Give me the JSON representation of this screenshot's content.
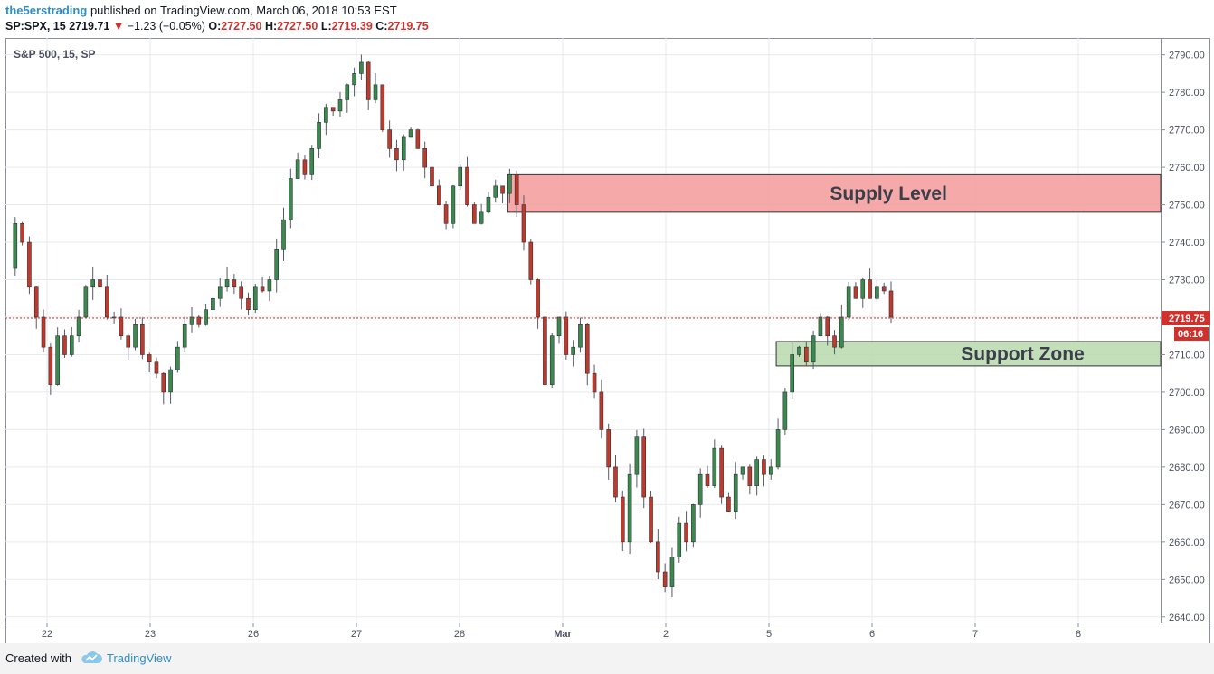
{
  "header": {
    "author": "the5erstrading",
    "published_text": "published on TradingView.com, March 06, 2018 10:53 EST",
    "symbol": "SP:SPX, 15",
    "last": "2719.71",
    "change": "−1.23 (−0.05%)",
    "o_label": "O:",
    "o_value": "2727.50",
    "h_label": "H:",
    "h_value": "2727.50",
    "l_label": "L:",
    "l_value": "2719.39",
    "c_label": "C:",
    "c_value": "2719.75",
    "down_color": "#d0312d",
    "author_color": "#2e8ec8"
  },
  "footer": {
    "created_with": "Created with",
    "brand": "TradingView",
    "logo_icon": "tradingview-cloud-icon"
  },
  "chart_data": {
    "type": "candlestick",
    "title": "S&P 500, 15, SP",
    "xlabel": "",
    "ylabel": "",
    "ylim": [
      2638.5,
      2794.5
    ],
    "y_ticks": [
      2640,
      2650,
      2660,
      2670,
      2680,
      2690,
      2700,
      2710,
      2720,
      2730,
      2740,
      2750,
      2760,
      2770,
      2780,
      2790
    ],
    "y_tick_labels": [
      "2640.00",
      "2650.00",
      "2660.00",
      "2670.00",
      "2680.00",
      "2690.00",
      "2700.00",
      "2710.00",
      "2720.00",
      "2730.00",
      "2740.00",
      "2750.00",
      "2760.00",
      "2770.00",
      "2780.00",
      "2790.00"
    ],
    "x_ticks": [
      "22",
      "23",
      "26",
      "27",
      "28",
      "Mar",
      "2",
      "5",
      "6",
      "7",
      "8"
    ],
    "grid": true,
    "up_color": "#3b8a4d",
    "down_color": "#c0392b",
    "last_price_label": "2719.75",
    "last_price": 2719.75,
    "countdown_label": "06:16",
    "zones": [
      {
        "label": "Supply Level",
        "from": 2748,
        "to": 2758,
        "fill": "#f59a9a",
        "border": "#333333"
      },
      {
        "label": "Support Zone",
        "from": 2707,
        "to": 2713.5,
        "fill": "#b8d9ad",
        "border": "#333333"
      }
    ],
    "anchors": [
      2733,
      2745,
      2740,
      2728,
      2720,
      2712,
      2702,
      2715,
      2710,
      2715,
      2720,
      2728,
      2730,
      2728,
      2720,
      2720,
      2715,
      2712,
      2718,
      2710,
      2708,
      2705,
      2700,
      2706,
      2712,
      2718,
      2720,
      2718,
      2722,
      2725,
      2728,
      2730,
      2728,
      2725,
      2722,
      2728,
      2727,
      2730,
      2738,
      2746,
      2757,
      2762,
      2758,
      2765,
      2772,
      2776,
      2775,
      2778,
      2782,
      2785,
      2788,
      2778,
      2782,
      2770,
      2765,
      2762,
      2768,
      2770,
      2765,
      2760,
      2755,
      2750,
      2745,
      2755,
      2760,
      2750,
      2745,
      2748,
      2752,
      2755,
      2753,
      2758,
      2750,
      2740,
      2730,
      2720,
      2702,
      2715,
      2720,
      2710,
      2712,
      2718,
      2705,
      2700,
      2690,
      2680,
      2672,
      2660,
      2678,
      2688,
      2672,
      2660,
      2652,
      2648,
      2656,
      2665,
      2660,
      2670,
      2678,
      2675,
      2685,
      2672,
      2668,
      2678,
      2680,
      2675,
      2682,
      2678,
      2680,
      2690,
      2700,
      2710,
      2712,
      2708,
      2715,
      2720,
      2715,
      2712,
      2720,
      2728,
      2725,
      2730,
      2725,
      2728,
      2727,
      2720
    ]
  }
}
